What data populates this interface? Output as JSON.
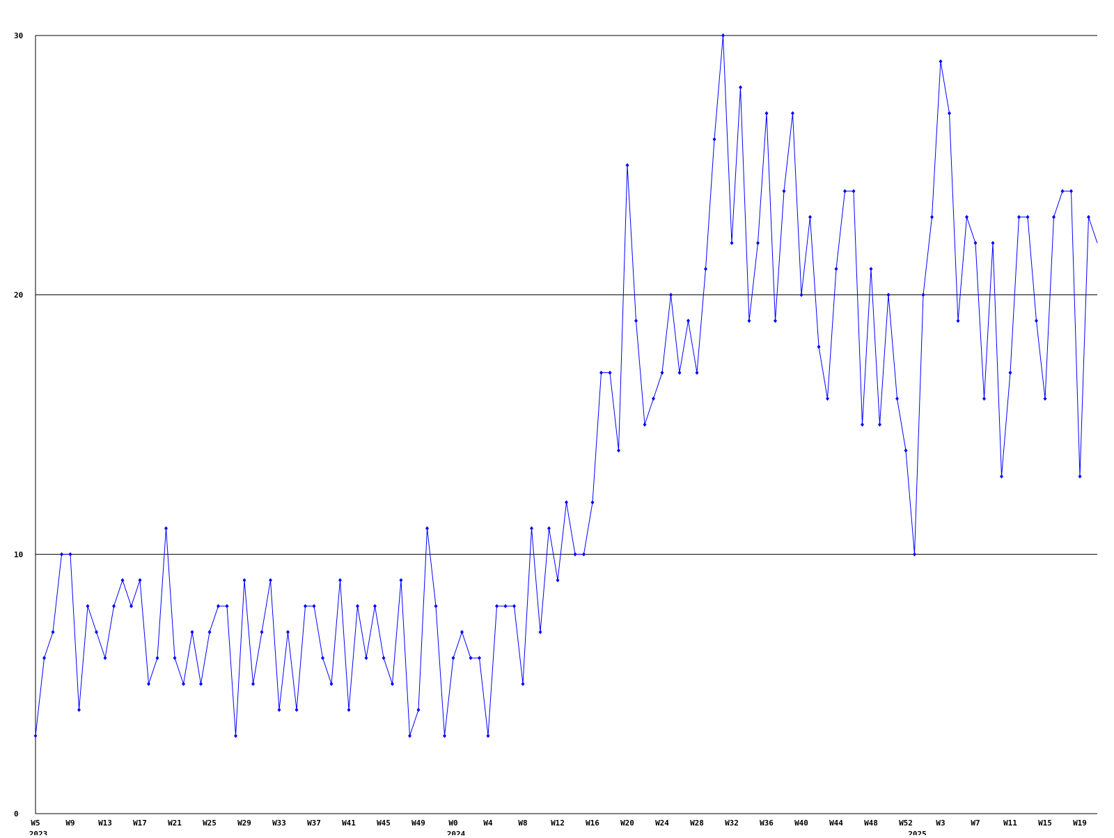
{
  "chart_data": {
    "type": "line",
    "categories": [
      "W5",
      null,
      null,
      null,
      "W9",
      null,
      null,
      null,
      "W13",
      null,
      null,
      null,
      "W17",
      null,
      null,
      null,
      "W21",
      null,
      null,
      null,
      "W25",
      null,
      null,
      null,
      "W29",
      null,
      null,
      null,
      "W33",
      null,
      null,
      null,
      "W37",
      null,
      null,
      null,
      "W41",
      null,
      null,
      null,
      "W45",
      null,
      null,
      null,
      "W49",
      null,
      null,
      null,
      "W0",
      null,
      null,
      null,
      "W4",
      null,
      null,
      null,
      "W8",
      null,
      null,
      null,
      "W12",
      null,
      null,
      null,
      "W16",
      null,
      null,
      null,
      "W20",
      null,
      null,
      null,
      "W24",
      null,
      null,
      null,
      "W28",
      null,
      null,
      null,
      "W32",
      null,
      null,
      null,
      "W36",
      null,
      null,
      null,
      "W40",
      null,
      null,
      null,
      "W44",
      null,
      null,
      null,
      "W48",
      null,
      null,
      null,
      "W52",
      null,
      null,
      null,
      "W3",
      null,
      null,
      null,
      "W7",
      null,
      null,
      null,
      "W11",
      null,
      null,
      null,
      "W15",
      null,
      null,
      null,
      "W19",
      null,
      null
    ],
    "years": [
      "2023",
      null,
      null,
      null,
      null,
      null,
      null,
      null,
      null,
      null,
      null,
      null,
      null,
      null,
      null,
      null,
      null,
      null,
      null,
      null,
      null,
      null,
      null,
      null,
      null,
      null,
      null,
      null,
      null,
      null,
      null,
      null,
      null,
      null,
      null,
      null,
      null,
      null,
      null,
      null,
      null,
      null,
      null,
      null,
      null,
      null,
      null,
      null,
      "2024",
      null,
      null,
      null,
      null,
      null,
      null,
      null,
      null,
      null,
      null,
      null,
      null,
      null,
      null,
      null,
      null,
      null,
      null,
      null,
      null,
      null,
      null,
      null,
      null,
      null,
      null,
      null,
      null,
      null,
      null,
      null,
      null,
      null,
      null,
      null,
      null,
      null,
      null,
      null,
      null,
      null,
      null,
      null,
      null,
      null,
      null,
      null,
      null,
      null,
      null,
      null,
      null,
      "2025",
      null,
      null,
      null,
      null,
      null,
      null,
      null,
      null,
      null,
      null,
      null,
      null,
      null,
      null,
      null,
      null,
      null,
      null,
      null,
      null,
      null
    ],
    "series": [
      {
        "color": "#0000ff",
        "values": [
          3,
          6,
          7,
          10,
          10,
          4,
          8,
          7,
          6,
          8,
          9,
          8,
          9,
          5,
          6,
          11,
          6,
          5,
          7,
          5,
          7,
          8,
          8,
          3,
          9,
          5,
          7,
          9,
          4,
          7,
          4,
          8,
          8,
          6,
          5,
          9,
          4,
          8,
          6,
          8,
          6,
          5,
          9,
          3,
          4,
          11,
          8,
          3,
          6,
          7,
          6,
          6,
          3,
          8,
          8,
          8,
          5,
          11,
          7,
          11,
          9,
          12,
          10,
          10,
          12,
          17,
          17,
          14,
          25,
          19,
          15,
          16,
          17,
          20,
          17,
          19,
          17,
          21,
          26,
          30,
          22,
          28,
          19,
          22,
          27,
          19,
          24,
          27,
          20,
          23,
          18,
          16,
          21,
          24,
          24,
          15,
          21,
          15,
          20,
          16,
          14,
          10,
          20,
          23,
          29,
          27,
          19,
          23,
          22,
          16,
          22,
          13,
          17,
          23,
          23,
          19,
          16,
          23,
          24,
          24,
          13,
          23,
          22
        ]
      }
    ],
    "ylim": [
      0,
      30
    ],
    "yticks": [
      0,
      10,
      20,
      30
    ],
    "grid": true
  }
}
